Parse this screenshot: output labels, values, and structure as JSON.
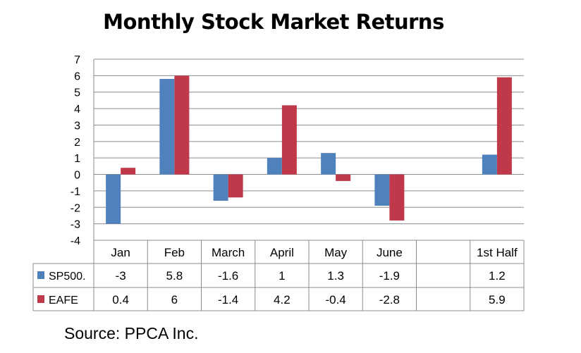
{
  "chart_data": {
    "type": "bar",
    "title": "Monthly Stock Market Returns",
    "categories": [
      "Jan",
      "Feb",
      "March",
      "April",
      "May",
      "June",
      "",
      "1st Half"
    ],
    "series": [
      {
        "name": "SP500.",
        "color": "#4F81BD",
        "values": [
          -3,
          5.8,
          -1.6,
          1,
          1.3,
          -1.9,
          null,
          1.2
        ],
        "labels": [
          "-3",
          "5.8",
          "-1.6",
          "1",
          "1.3",
          "-1.9",
          "",
          "1.2"
        ]
      },
      {
        "name": "EAFE",
        "color": "#C0394B",
        "values": [
          0.4,
          6,
          -1.4,
          4.2,
          -0.4,
          -2.8,
          null,
          5.9
        ],
        "labels": [
          "0.4",
          "6",
          "-1.4",
          "4.2",
          "-0.4",
          "-2.8",
          "",
          "5.9"
        ]
      }
    ],
    "ylim": [
      -4,
      7
    ],
    "yticks": [
      "-4",
      "-3",
      "-2",
      "-1",
      "0",
      "1",
      "2",
      "3",
      "4",
      "5",
      "6",
      "7"
    ],
    "grid": true,
    "legend": "data table"
  },
  "source": "Source: PPCA Inc."
}
